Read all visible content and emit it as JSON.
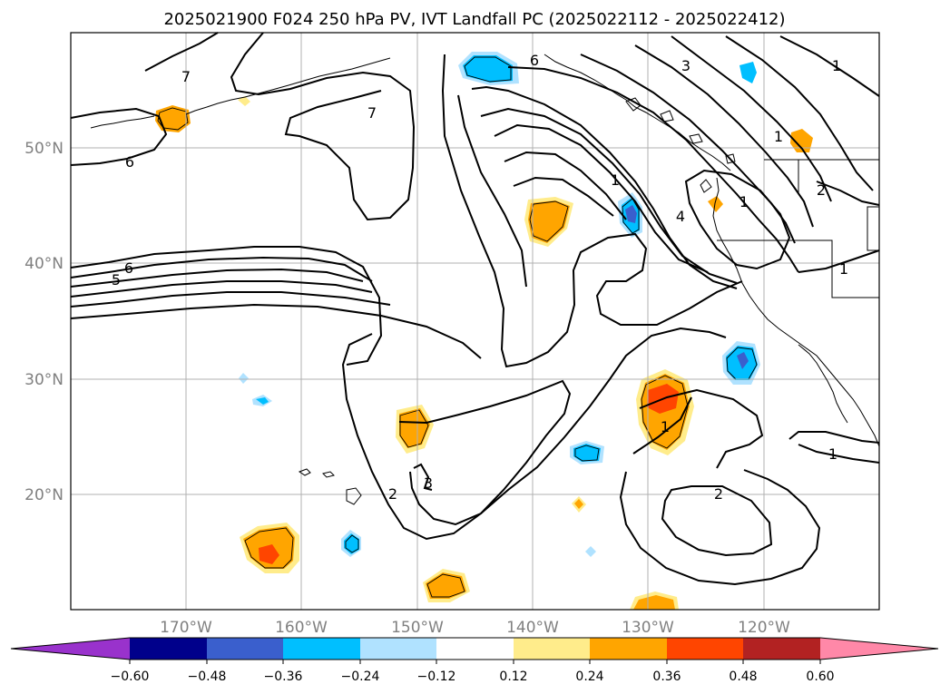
{
  "chart_data": {
    "type": "contour map",
    "title": "2025021900 F024 250 hPa PV, IVT Landfall PC (2025022112 - 2025022412)",
    "lon_ticks": [
      "170°W",
      "160°W",
      "150°W",
      "140°W",
      "130°W",
      "120°W"
    ],
    "lat_ticks": [
      "50°N",
      "40°N",
      "30°N",
      "20°N"
    ],
    "lon_values": [
      -170,
      -160,
      -150,
      -140,
      -130,
      -120
    ],
    "lat_values": [
      50,
      40,
      30,
      20
    ],
    "lon_range": [
      -180,
      -110
    ],
    "lat_range": [
      10,
      60
    ],
    "grid": true,
    "colorbar": {
      "ticks": [
        "−0.60",
        "−0.48",
        "−0.36",
        "−0.24",
        "−0.12",
        "0.12",
        "0.24",
        "0.36",
        "0.48",
        "0.60"
      ],
      "levels": [
        -0.6,
        -0.48,
        -0.36,
        -0.24,
        -0.12,
        0.12,
        0.24,
        0.36,
        0.48,
        0.6
      ],
      "colors": [
        "#9932cc",
        "#00008b",
        "#3a5fcd",
        "#00bfff",
        "#b0e2ff",
        "#ffffff",
        "#ffec8b",
        "#ffa500",
        "#ff4500",
        "#b22222",
        "#ff88a8"
      ],
      "extend": "both"
    },
    "contour_labels": [
      "7",
      "7",
      "6",
      "6",
      "6",
      "5",
      "1",
      "1",
      "1",
      "1",
      "1",
      "1",
      "1",
      "2",
      "2",
      "2",
      "3",
      "3",
      "4"
    ],
    "colors": {
      "grid": "#b0b0b0",
      "contour": "#000000"
    }
  }
}
